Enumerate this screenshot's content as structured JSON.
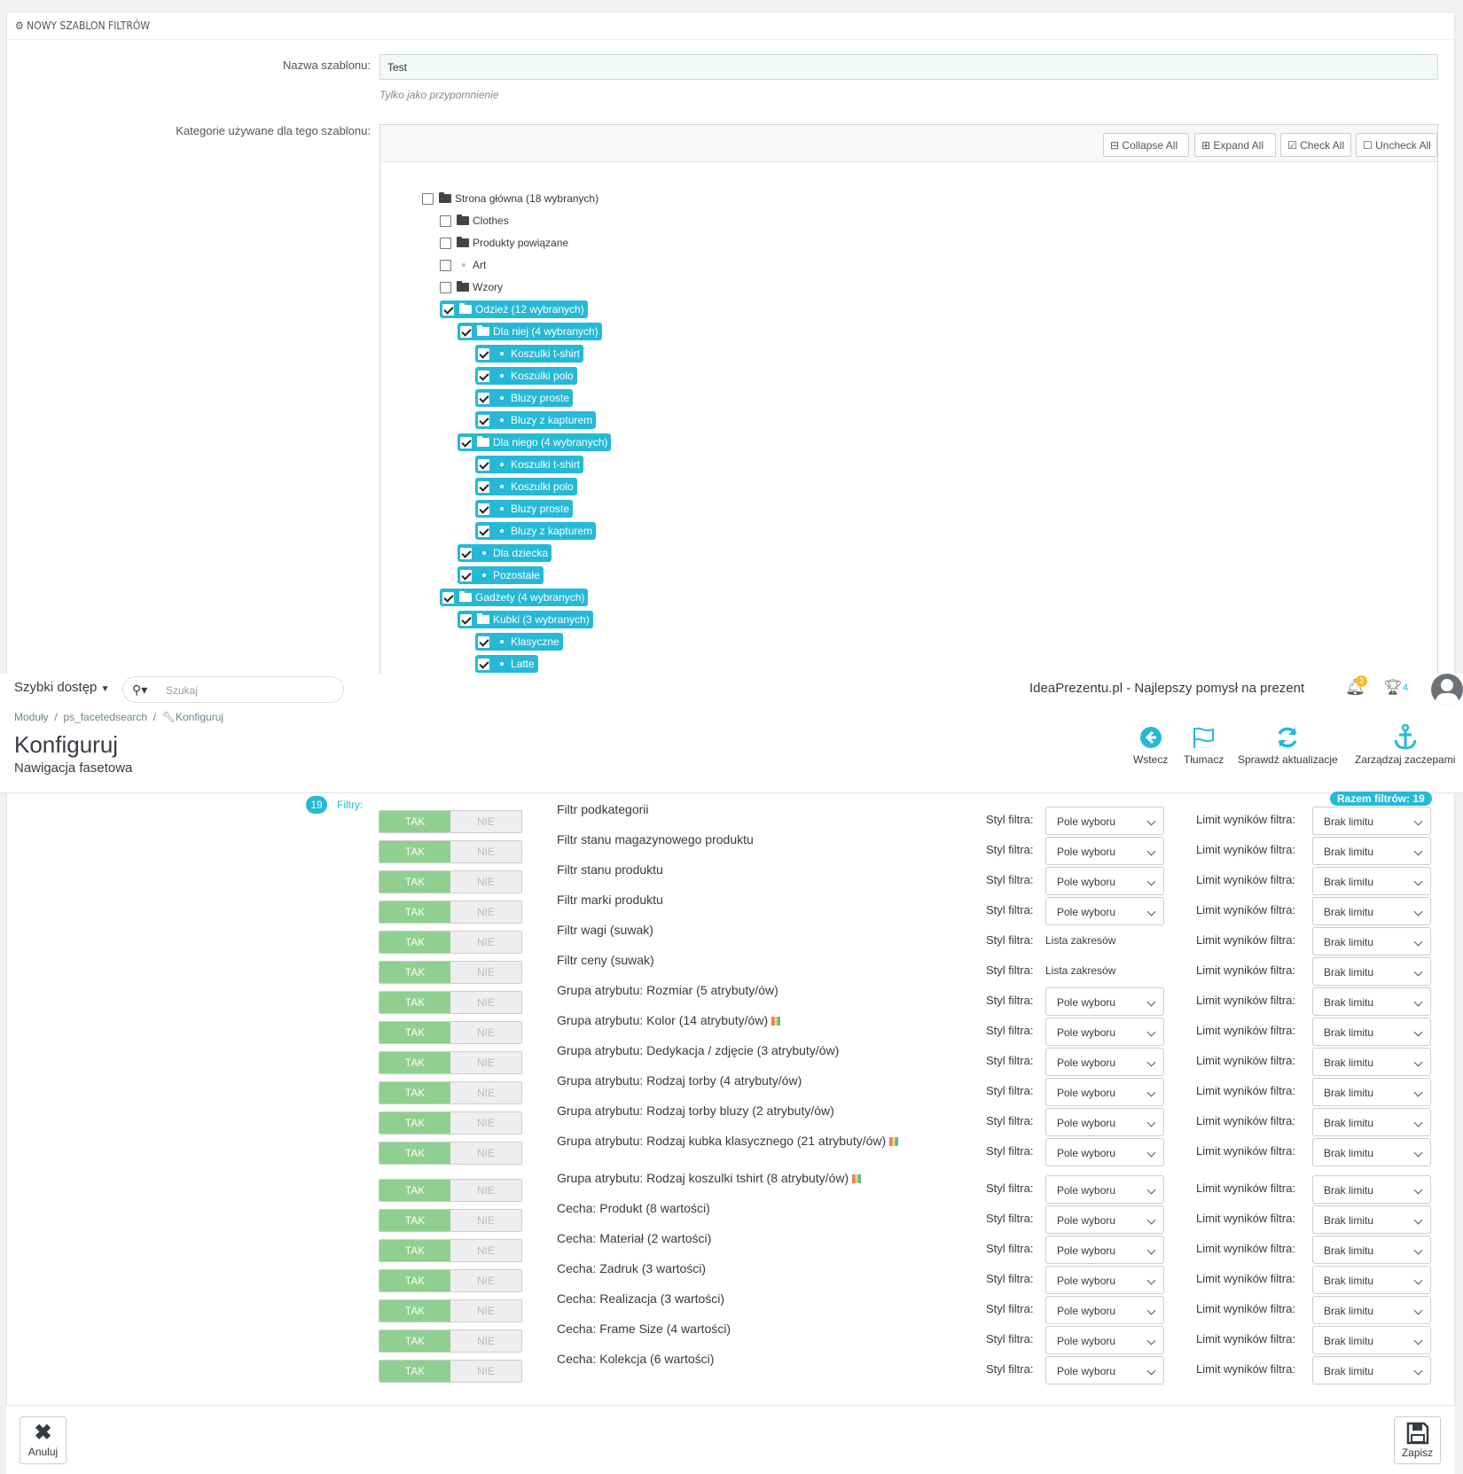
{
  "panel": {
    "title": "NOWY SZABLON FILTRÓW",
    "name_label": "Nazwa szablonu:",
    "name_value": "Test",
    "name_help": "Tylko jako przypomnienie",
    "categories_label": "Kategorie używane dla tego szablonu:"
  },
  "tree_toolbar": {
    "collapse": "Collapse All",
    "expand": "Expand All",
    "check": "Check All",
    "uncheck": "Uncheck All"
  },
  "tree": [
    {
      "label": "Strona główna (18 wybranych)",
      "level": 0,
      "kind": "folder-open",
      "checked": false,
      "selected": false
    },
    {
      "label": "Clothes",
      "level": 1,
      "kind": "folder",
      "checked": false,
      "selected": false
    },
    {
      "label": "Produkty powiązane",
      "level": 1,
      "kind": "folder",
      "checked": false,
      "selected": false
    },
    {
      "label": "Art",
      "level": 1,
      "kind": "leaf",
      "checked": false,
      "selected": false
    },
    {
      "label": "Wzory",
      "level": 1,
      "kind": "folder",
      "checked": false,
      "selected": false
    },
    {
      "label": "Odzież (12 wybranych)",
      "level": 1,
      "kind": "folder-open",
      "checked": true,
      "selected": true
    },
    {
      "label": "Dla niej (4 wybranych)",
      "level": 2,
      "kind": "folder-open",
      "checked": true,
      "selected": true
    },
    {
      "label": "Koszulki t-shirt",
      "level": 3,
      "kind": "leaf",
      "checked": true,
      "selected": true
    },
    {
      "label": "Koszulki polo",
      "level": 3,
      "kind": "leaf",
      "checked": true,
      "selected": true
    },
    {
      "label": "Bluzy proste",
      "level": 3,
      "kind": "leaf",
      "checked": true,
      "selected": true
    },
    {
      "label": "Bluzy z kapturem",
      "level": 3,
      "kind": "leaf",
      "checked": true,
      "selected": true
    },
    {
      "label": "Dla niego (4 wybranych)",
      "level": 2,
      "kind": "folder-open",
      "checked": true,
      "selected": true
    },
    {
      "label": "Koszulki t-shirt",
      "level": 3,
      "kind": "leaf",
      "checked": true,
      "selected": true
    },
    {
      "label": "Koszulki polo",
      "level": 3,
      "kind": "leaf",
      "checked": true,
      "selected": true
    },
    {
      "label": "Bluzy proste",
      "level": 3,
      "kind": "leaf",
      "checked": true,
      "selected": true
    },
    {
      "label": "Bluzy z kapturem",
      "level": 3,
      "kind": "leaf",
      "checked": true,
      "selected": true
    },
    {
      "label": "Dla dziecka",
      "level": 2,
      "kind": "leaf",
      "checked": true,
      "selected": true
    },
    {
      "label": "Pozostałe",
      "level": 2,
      "kind": "leaf",
      "checked": true,
      "selected": true
    },
    {
      "label": "Gadżety (4 wybranych)",
      "level": 1,
      "kind": "folder-open",
      "checked": true,
      "selected": true
    },
    {
      "label": "Kubki (3 wybranych)",
      "level": 2,
      "kind": "folder-open",
      "checked": true,
      "selected": true
    },
    {
      "label": "Klasyczne",
      "level": 3,
      "kind": "leaf",
      "checked": true,
      "selected": true
    },
    {
      "label": "Latte",
      "level": 3,
      "kind": "leaf",
      "checked": true,
      "selected": true
    }
  ],
  "header": {
    "quick_access": "Szybki dostęp",
    "search_placeholder": "Szukaj",
    "shop_name": "IdeaPrezentu.pl - Najlepszy pomysł na prezent",
    "notif_count": "2",
    "trophy_count": "4",
    "breadcrumb": [
      "Moduły",
      "ps_facetedsearch",
      "Konfiguruj"
    ],
    "title": "Konfiguruj",
    "subtitle": "Nawigacja fasetowa",
    "toolbar": [
      {
        "label": "Wstecz",
        "icon": "back-circle-icon"
      },
      {
        "label": "Tłumacz",
        "icon": "flag-icon"
      },
      {
        "label": "Sprawdź aktualizacje",
        "icon": "refresh-icon"
      },
      {
        "label": "Zarządzaj zaczepami",
        "icon": "anchor-icon"
      }
    ]
  },
  "filters_section": {
    "count": "19",
    "label": "Filtry:",
    "total_badge": "Razem filtrów: 19",
    "yes": "TAK",
    "no": "NIE",
    "style_label": "Styl filtra:",
    "limit_label": "Limit wyników filtra:",
    "rows": [
      {
        "name": "Filtr podkategorii",
        "style": "Pole wyboru",
        "style_select": true,
        "limit": "Brak limitu"
      },
      {
        "name": "Filtr stanu magazynowego produktu",
        "style": "Pole wyboru",
        "style_select": true,
        "limit": "Brak limitu"
      },
      {
        "name": "Filtr stanu produktu",
        "style": "Pole wyboru",
        "style_select": true,
        "limit": "Brak limitu"
      },
      {
        "name": "Filtr marki produktu",
        "style": "Pole wyboru",
        "style_select": true,
        "limit": "Brak limitu"
      },
      {
        "name": "Filtr wagi (suwak)",
        "style": "Lista zakresów",
        "style_select": false,
        "limit": "Brak limitu"
      },
      {
        "name": "Filtr ceny (suwak)",
        "style": "Lista zakresów",
        "style_select": false,
        "limit": "Brak limitu"
      },
      {
        "name": "Grupa atrybutu: Rozmiar (5 atrybuty/ów)",
        "style": "Pole wyboru",
        "style_select": true,
        "limit": "Brak limitu"
      },
      {
        "name": "Grupa atrybutu: Kolor (14 atrybuty/ów)",
        "style": "Pole wyboru",
        "style_select": true,
        "limit": "Brak limitu",
        "palette": true
      },
      {
        "name": "Grupa atrybutu: Dedykacja / zdjęcie (3 atrybuty/ów)",
        "style": "Pole wyboru",
        "style_select": true,
        "limit": "Brak limitu"
      },
      {
        "name": "Grupa atrybutu: Rodzaj torby (4 atrybuty/ów)",
        "style": "Pole wyboru",
        "style_select": true,
        "limit": "Brak limitu"
      },
      {
        "name": "Grupa atrybutu: Rodzaj torby bluzy (2 atrybuty/ów)",
        "style": "Pole wyboru",
        "style_select": true,
        "limit": "Brak limitu"
      },
      {
        "name": "Grupa atrybutu: Rodzaj kubka klasycznego (21 atrybuty/ów)",
        "style": "Pole wyboru",
        "style_select": true,
        "limit": "Brak limitu",
        "palette": true
      },
      {
        "name": "Grupa atrybutu: Rodzaj koszulki tshirt (8 atrybuty/ów)",
        "style": "Pole wyboru",
        "style_select": true,
        "limit": "Brak limitu",
        "palette": true
      },
      {
        "name": "Cecha: Produkt (8 wartości)",
        "style": "Pole wyboru",
        "style_select": true,
        "limit": "Brak limitu"
      },
      {
        "name": "Cecha: Materiał (2 wartości)",
        "style": "Pole wyboru",
        "style_select": true,
        "limit": "Brak limitu"
      },
      {
        "name": "Cecha: Zadruk (3 wartości)",
        "style": "Pole wyboru",
        "style_select": true,
        "limit": "Brak limitu"
      },
      {
        "name": "Cecha: Realizacja (3 wartości)",
        "style": "Pole wyboru",
        "style_select": true,
        "limit": "Brak limitu"
      },
      {
        "name": "Cecha: Frame Size (4 wartości)",
        "style": "Pole wyboru",
        "style_select": true,
        "limit": "Brak limitu"
      },
      {
        "name": "Cecha: Kolekcja (6 wartości)",
        "style": "Pole wyboru",
        "style_select": true,
        "limit": "Brak limitu"
      }
    ]
  },
  "footer": {
    "cancel": "Anuluj",
    "save": "Zapisz"
  },
  "colors": {
    "accent": "#25b9d7",
    "toggle_yes": "#8fcf8f",
    "toggle_no": "#eeeeee"
  }
}
